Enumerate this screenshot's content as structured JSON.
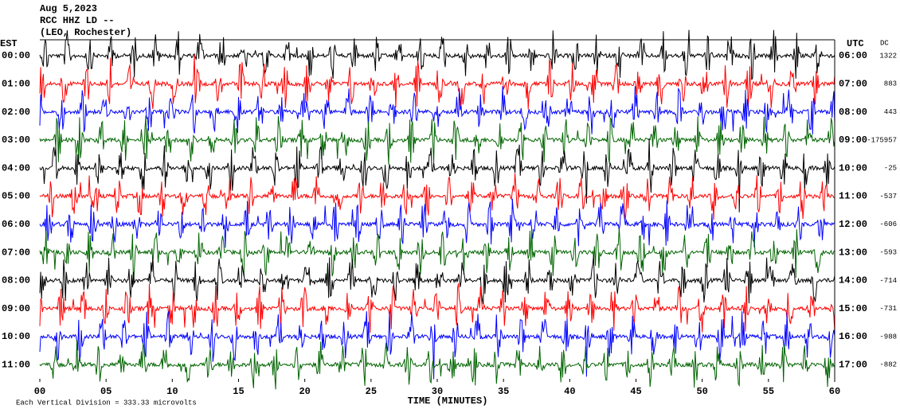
{
  "chart_data": {
    "type": "helicorder",
    "title": "Aug 5,2023",
    "station": "RCC HHZ LD --",
    "location": "(LEO, Rochester)",
    "left_axis_label": "EST",
    "right_axis_label": "UTC",
    "dc_label": "DC",
    "x_label": "TIME (MINUTES)",
    "scale_note": "Each Vertical Division =  333.33 microvolts",
    "xlim": [
      0,
      60
    ],
    "xticks": [
      {
        "value": 0,
        "label": "00"
      },
      {
        "value": 5,
        "label": "05"
      },
      10,
      15,
      20,
      25,
      30,
      35,
      40,
      45,
      50,
      55,
      60
    ],
    "rows": [
      {
        "est": "00:00",
        "utc": "06:00",
        "dc": 1322,
        "color": "#000000"
      },
      {
        "est": "01:00",
        "utc": "07:00",
        "dc": 883,
        "color": "#ff0000"
      },
      {
        "est": "02:00",
        "utc": "08:00",
        "dc": 443,
        "color": "#0000ff"
      },
      {
        "est": "03:00",
        "utc": "09:00",
        "dc": -175957,
        "color": "#006400"
      },
      {
        "est": "04:00",
        "utc": "10:00",
        "dc": -25,
        "color": "#000000"
      },
      {
        "est": "05:00",
        "utc": "11:00",
        "dc": -537,
        "color": "#ff0000"
      },
      {
        "est": "06:00",
        "utc": "12:00",
        "dc": -606,
        "color": "#0000ff"
      },
      {
        "est": "07:00",
        "utc": "13:00",
        "dc": -593,
        "color": "#006400"
      },
      {
        "est": "08:00",
        "utc": "14:00",
        "dc": -714,
        "color": "#000000"
      },
      {
        "est": "09:00",
        "utc": "15:00",
        "dc": -731,
        "color": "#ff0000"
      },
      {
        "est": "10:00",
        "utc": "16:00",
        "dc": -988,
        "color": "#0000ff"
      },
      {
        "est": "11:00",
        "utc": "17:00",
        "dc": -882,
        "color": "#006400"
      }
    ]
  }
}
